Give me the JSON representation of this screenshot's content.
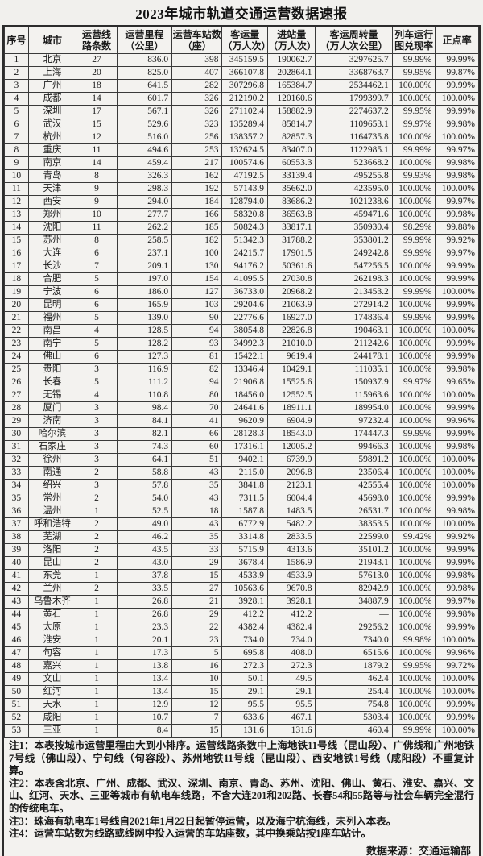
{
  "title": "2023年城市轨道交通运营数据速报",
  "table": {
    "columns": [
      "序号",
      "城市",
      "运营线\n路条数",
      "运营里程\n（公里）",
      "运营车站数\n（座）",
      "客运量\n（万人次）",
      "进站量\n（万人次）",
      "客运周转量\n（万人次公里）",
      "列车运行\n图兑现率",
      "正点率"
    ],
    "rows": [
      [
        "1",
        "北京",
        "27",
        "836.0",
        "398",
        "345159.5",
        "190062.7",
        "3297625.7",
        "99.99%",
        "99.99%"
      ],
      [
        "2",
        "上海",
        "20",
        "825.0",
        "407",
        "366107.8",
        "202864.1",
        "3368763.7",
        "99.95%",
        "99.87%"
      ],
      [
        "3",
        "广州",
        "18",
        "641.5",
        "282",
        "307296.8",
        "165384.7",
        "2534462.1",
        "100.00%",
        "99.99%"
      ],
      [
        "4",
        "成都",
        "14",
        "601.7",
        "326",
        "212190.2",
        "120160.6",
        "1799399.7",
        "100.00%",
        "100.00%"
      ],
      [
        "5",
        "深圳",
        "17",
        "567.1",
        "326",
        "271102.4",
        "158882.9",
        "2274637.2",
        "99.95%",
        "99.99%"
      ],
      [
        "6",
        "武汉",
        "15",
        "529.6",
        "323",
        "135289.4",
        "85814.7",
        "1109653.1",
        "99.97%",
        "99.98%"
      ],
      [
        "7",
        "杭州",
        "12",
        "516.0",
        "256",
        "138357.2",
        "82857.3",
        "1164735.8",
        "100.00%",
        "100.00%"
      ],
      [
        "8",
        "重庆",
        "11",
        "494.6",
        "253",
        "132624.5",
        "83407.0",
        "1122985.1",
        "99.99%",
        "99.97%"
      ],
      [
        "9",
        "南京",
        "14",
        "459.4",
        "217",
        "100574.6",
        "60553.3",
        "523668.2",
        "100.00%",
        "99.98%"
      ],
      [
        "10",
        "青岛",
        "8",
        "326.3",
        "162",
        "47192.5",
        "33139.4",
        "495255.8",
        "99.93%",
        "99.98%"
      ],
      [
        "11",
        "天津",
        "9",
        "298.3",
        "192",
        "57143.9",
        "35662.0",
        "423595.0",
        "100.00%",
        "100.00%"
      ],
      [
        "12",
        "西安",
        "9",
        "294.0",
        "184",
        "128794.0",
        "83686.2",
        "1021238.6",
        "100.00%",
        "99.97%"
      ],
      [
        "13",
        "郑州",
        "10",
        "277.7",
        "166",
        "58320.8",
        "36563.8",
        "459471.6",
        "100.00%",
        "99.98%"
      ],
      [
        "14",
        "沈阳",
        "11",
        "262.2",
        "185",
        "50824.3",
        "33817.1",
        "350930.4",
        "98.29%",
        "99.88%"
      ],
      [
        "15",
        "苏州",
        "8",
        "258.5",
        "182",
        "51342.3",
        "31788.2",
        "353801.2",
        "99.99%",
        "99.92%"
      ],
      [
        "16",
        "大连",
        "6",
        "237.1",
        "100",
        "24215.7",
        "17901.5",
        "249242.8",
        "99.99%",
        "99.97%"
      ],
      [
        "17",
        "长沙",
        "7",
        "209.1",
        "130",
        "94176.2",
        "50361.6",
        "547256.5",
        "100.00%",
        "99.99%"
      ],
      [
        "18",
        "合肥",
        "5",
        "197.0",
        "154",
        "41095.5",
        "27030.8",
        "262198.3",
        "100.00%",
        "99.99%"
      ],
      [
        "19",
        "宁波",
        "6",
        "186.0",
        "127",
        "36733.0",
        "20968.2",
        "213453.2",
        "99.99%",
        "100.00%"
      ],
      [
        "20",
        "昆明",
        "6",
        "165.9",
        "103",
        "29204.6",
        "21063.9",
        "272914.2",
        "100.00%",
        "99.99%"
      ],
      [
        "21",
        "福州",
        "5",
        "139.0",
        "90",
        "22776.6",
        "16927.0",
        "174836.4",
        "99.99%",
        "99.99%"
      ],
      [
        "22",
        "南昌",
        "4",
        "128.5",
        "94",
        "38054.8",
        "22826.8",
        "190463.1",
        "100.00%",
        "100.00%"
      ],
      [
        "23",
        "南宁",
        "5",
        "128.2",
        "93",
        "34992.3",
        "21010.0",
        "211242.6",
        "100.00%",
        "99.99%"
      ],
      [
        "24",
        "佛山",
        "6",
        "127.3",
        "81",
        "15422.1",
        "9619.4",
        "244178.1",
        "100.00%",
        "99.99%"
      ],
      [
        "25",
        "贵阳",
        "3",
        "116.9",
        "82",
        "13346.4",
        "10429.1",
        "111035.1",
        "100.00%",
        "99.98%"
      ],
      [
        "26",
        "长春",
        "5",
        "111.2",
        "94",
        "21906.8",
        "15525.6",
        "150937.9",
        "99.97%",
        "99.65%"
      ],
      [
        "27",
        "无锡",
        "4",
        "110.8",
        "80",
        "18456.0",
        "12552.5",
        "115963.6",
        "100.00%",
        "100.00%"
      ],
      [
        "28",
        "厦门",
        "3",
        "98.4",
        "70",
        "24641.6",
        "18911.1",
        "189954.0",
        "100.00%",
        "99.99%"
      ],
      [
        "29",
        "济南",
        "3",
        "84.1",
        "41",
        "9620.9",
        "6904.9",
        "97232.4",
        "100.00%",
        "99.96%"
      ],
      [
        "30",
        "哈尔滨",
        "3",
        "82.1",
        "66",
        "28128.3",
        "18543.0",
        "174447.3",
        "99.99%",
        "99.99%"
      ],
      [
        "31",
        "石家庄",
        "3",
        "74.3",
        "60",
        "17316.1",
        "12005.2",
        "99466.3",
        "100.00%",
        "99.98%"
      ],
      [
        "32",
        "徐州",
        "3",
        "64.1",
        "51",
        "9402.1",
        "6739.9",
        "59891.2",
        "100.00%",
        "100.00%"
      ],
      [
        "33",
        "南通",
        "2",
        "58.8",
        "43",
        "2115.0",
        "2096.8",
        "23506.4",
        "100.00%",
        "100.00%"
      ],
      [
        "34",
        "绍兴",
        "3",
        "57.8",
        "35",
        "3841.8",
        "2123.1",
        "42555.4",
        "100.00%",
        "100.00%"
      ],
      [
        "35",
        "常州",
        "2",
        "54.0",
        "43",
        "7311.5",
        "6004.4",
        "45698.0",
        "100.00%",
        "99.99%"
      ],
      [
        "36",
        "温州",
        "1",
        "52.5",
        "18",
        "1587.8",
        "1483.5",
        "26531.7",
        "100.00%",
        "99.98%"
      ],
      [
        "37",
        "呼和浩特",
        "2",
        "49.0",
        "43",
        "6772.9",
        "5482.2",
        "38353.5",
        "100.00%",
        "100.00%"
      ],
      [
        "38",
        "芜湖",
        "2",
        "46.2",
        "35",
        "3314.8",
        "2833.5",
        "22599.0",
        "99.42%",
        "99.92%"
      ],
      [
        "39",
        "洛阳",
        "2",
        "43.5",
        "33",
        "5715.9",
        "4313.6",
        "35101.2",
        "100.00%",
        "99.99%"
      ],
      [
        "40",
        "昆山",
        "2",
        "43.0",
        "29",
        "3678.4",
        "1586.9",
        "21943.1",
        "100.00%",
        "99.99%"
      ],
      [
        "41",
        "东莞",
        "1",
        "37.8",
        "15",
        "4533.9",
        "4533.9",
        "57613.0",
        "100.00%",
        "99.98%"
      ],
      [
        "42",
        "兰州",
        "2",
        "33.5",
        "27",
        "10563.6",
        "9670.8",
        "82942.9",
        "100.00%",
        "99.98%"
      ],
      [
        "43",
        "乌鲁木齐",
        "1",
        "26.8",
        "21",
        "3928.1",
        "3928.1",
        "34887.9",
        "100.00%",
        "99.97%"
      ],
      [
        "44",
        "黄石",
        "1",
        "26.8",
        "29",
        "412.2",
        "412.2",
        "—",
        "100.00%",
        "99.98%"
      ],
      [
        "45",
        "太原",
        "1",
        "23.3",
        "22",
        "4382.4",
        "4382.4",
        "29256.2",
        "100.00%",
        "99.99%"
      ],
      [
        "46",
        "淮安",
        "1",
        "20.1",
        "23",
        "734.0",
        "734.0",
        "7340.0",
        "99.98%",
        "100.00%"
      ],
      [
        "47",
        "句容",
        "1",
        "17.3",
        "5",
        "695.8",
        "408.0",
        "6515.6",
        "100.00%",
        "99.96%"
      ],
      [
        "48",
        "嘉兴",
        "1",
        "13.8",
        "16",
        "272.3",
        "272.3",
        "1879.2",
        "99.95%",
        "99.72%"
      ],
      [
        "49",
        "文山",
        "1",
        "13.4",
        "10",
        "50.1",
        "49.5",
        "462.4",
        "100.00%",
        "100.00%"
      ],
      [
        "50",
        "红河",
        "1",
        "13.4",
        "15",
        "29.1",
        "29.1",
        "254.4",
        "100.00%",
        "100.00%"
      ],
      [
        "51",
        "天水",
        "1",
        "12.9",
        "12",
        "95.5",
        "95.5",
        "754.8",
        "100.00%",
        "99.99%"
      ],
      [
        "52",
        "咸阳",
        "1",
        "10.7",
        "7",
        "633.6",
        "467.1",
        "5303.4",
        "100.00%",
        "99.99%"
      ],
      [
        "53",
        "三亚",
        "1",
        "8.4",
        "15",
        "131.6",
        "131.6",
        "460.4",
        "99.99%",
        "100.00%"
      ]
    ]
  },
  "notes": [
    "注1：本表按城市运营里程由大到小排序。运营线路条数中上海地铁11号线（昆山段）、广佛线和广州地铁7号线（佛山段）、宁句线（句容段）、苏州地铁11号线（昆山段）、西安地铁1号线（咸阳段）不重复计算。",
    "注2：本表含北京、广州、成都、武汉、深圳、南京、青岛、苏州、沈阳、佛山、黄石、淮安、嘉兴、文山、红河、天水、三亚等城市有轨电车线路，不含大连201和202路、长春54和55路等与社会车辆完全混行的传统电车。",
    "注3：珠海有轨电车1号线自2021年1月22日起暂停运营，以及海宁杭海线，未列入本表。",
    "注4：运营车站数为线路或线网中投入运营的车站座数，其中换乘站按1座车站计。"
  ],
  "source": "数据来源：交通运输部"
}
